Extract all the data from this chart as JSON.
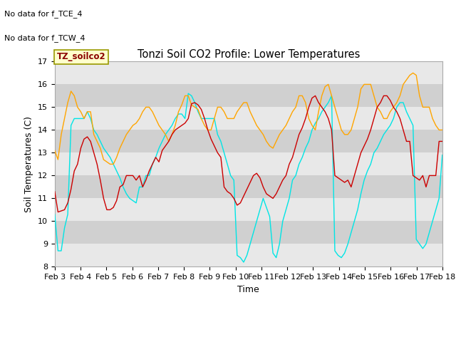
{
  "title": "Tonzi Soil CO2 Profile: Lower Temperatures",
  "xlabel": "Time",
  "ylabel": "Soil Temperatures (C)",
  "ylim": [
    8.0,
    17.0
  ],
  "yticks": [
    8.0,
    9.0,
    10.0,
    11.0,
    12.0,
    13.0,
    14.0,
    15.0,
    16.0,
    17.0
  ],
  "xtick_labels": [
    "Feb 3",
    "Feb 4",
    "Feb 5",
    "Feb 6",
    "Feb 7",
    "Feb 8",
    "Feb 9",
    "Feb 10",
    "Feb 11",
    "Feb 12",
    "Feb 13",
    "Feb 14",
    "Feb 15",
    "Feb 16",
    "Feb 17",
    "Feb 18"
  ],
  "no_data_text_1": "No data for f_TCE_4",
  "no_data_text_2": "No data for f_TCW_4",
  "legend_label_box": "TZ_soilco2",
  "plot_bg_light": "#e8e8e8",
  "plot_bg_dark": "#d0d0d0",
  "colors": {
    "open": "#cc0000",
    "tree": "#ffa500",
    "tree2": "#00e5e5"
  },
  "open_y": [
    11.3,
    10.4,
    10.45,
    10.5,
    10.8,
    11.4,
    12.2,
    12.5,
    13.2,
    13.6,
    13.7,
    13.5,
    13.0,
    12.5,
    11.8,
    11.0,
    10.5,
    10.5,
    10.6,
    10.9,
    11.5,
    11.6,
    12.0,
    12.0,
    12.0,
    11.8,
    12.0,
    11.5,
    11.8,
    12.2,
    12.5,
    12.8,
    12.6,
    13.1,
    13.3,
    13.5,
    13.8,
    14.0,
    14.1,
    14.2,
    14.3,
    14.5,
    15.15,
    15.2,
    15.1,
    14.9,
    14.5,
    14.0,
    13.6,
    13.3,
    13.0,
    12.8,
    11.5,
    11.3,
    11.2,
    11.0,
    10.7,
    10.8,
    11.1,
    11.4,
    11.7,
    12.0,
    12.1,
    11.9,
    11.5,
    11.2,
    11.1,
    11.0,
    11.2,
    11.5,
    11.8,
    12.0,
    12.5,
    12.8,
    13.3,
    13.8,
    14.1,
    14.5,
    15.0,
    15.4,
    15.5,
    15.2,
    15.0,
    14.8,
    14.5,
    14.0,
    12.0,
    11.9,
    11.8,
    11.7,
    11.8,
    11.5,
    12.0,
    12.5,
    13.0,
    13.3,
    13.6,
    14.0,
    14.5,
    15.0,
    15.2,
    15.5,
    15.5,
    15.3,
    15.0,
    14.8,
    14.5,
    14.0,
    13.5,
    13.5,
    12.0,
    11.9,
    11.8,
    12.0,
    11.5,
    12.0,
    12.0,
    12.0,
    13.5,
    13.5
  ],
  "tree_y": [
    13.1,
    12.7,
    13.8,
    14.5,
    15.2,
    15.7,
    15.5,
    15.0,
    14.8,
    14.5,
    14.8,
    14.8,
    13.8,
    13.5,
    13.2,
    12.7,
    12.6,
    12.5,
    12.5,
    12.8,
    13.2,
    13.5,
    13.8,
    14.0,
    14.2,
    14.3,
    14.5,
    14.8,
    15.0,
    15.0,
    14.8,
    14.5,
    14.2,
    14.0,
    13.8,
    13.5,
    13.8,
    14.2,
    14.8,
    15.1,
    15.5,
    15.5,
    15.1,
    15.0,
    14.9,
    14.5,
    14.2,
    14.0,
    14.0,
    14.5,
    15.0,
    15.0,
    14.8,
    14.5,
    14.5,
    14.5,
    14.8,
    15.0,
    15.2,
    15.2,
    14.8,
    14.5,
    14.2,
    14.0,
    13.8,
    13.5,
    13.3,
    13.2,
    13.5,
    13.8,
    14.0,
    14.2,
    14.5,
    14.8,
    15.0,
    15.5,
    15.5,
    15.2,
    14.5,
    14.2,
    14.0,
    14.8,
    15.5,
    15.9,
    16.0,
    15.5,
    15.0,
    14.5,
    14.0,
    13.8,
    13.8,
    14.0,
    14.5,
    15.0,
    15.8,
    16.0,
    16.0,
    16.0,
    15.5,
    15.0,
    14.8,
    14.5,
    14.5,
    14.8,
    15.0,
    15.2,
    15.5,
    16.0,
    16.2,
    16.4,
    16.5,
    16.4,
    15.5,
    15.0,
    15.0,
    15.0,
    14.5,
    14.2,
    14.0,
    14.0
  ],
  "tree2_y": [
    10.3,
    8.7,
    8.7,
    9.7,
    10.3,
    14.2,
    14.5,
    14.5,
    14.5,
    14.5,
    14.8,
    14.5,
    14.0,
    13.8,
    13.5,
    13.2,
    13.0,
    12.8,
    12.5,
    12.2,
    11.9,
    11.5,
    11.2,
    11.0,
    10.9,
    10.8,
    11.5,
    11.5,
    12.0,
    12.0,
    12.5,
    12.8,
    13.2,
    13.5,
    13.8,
    14.0,
    14.2,
    14.5,
    14.7,
    14.7,
    14.5,
    15.6,
    15.5,
    15.2,
    14.8,
    14.5,
    14.5,
    14.5,
    14.5,
    14.5,
    13.8,
    13.5,
    13.0,
    12.5,
    12.0,
    11.8,
    8.5,
    8.4,
    8.2,
    8.5,
    9.0,
    9.5,
    10.0,
    10.5,
    11.0,
    10.6,
    10.2,
    8.6,
    8.4,
    9.0,
    10.0,
    10.5,
    11.0,
    11.8,
    12.0,
    12.5,
    12.8,
    13.2,
    13.5,
    14.0,
    14.3,
    14.5,
    14.8,
    15.0,
    15.2,
    15.5,
    8.7,
    8.5,
    8.4,
    8.6,
    9.0,
    9.5,
    10.0,
    10.5,
    11.2,
    11.8,
    12.2,
    12.5,
    13.0,
    13.2,
    13.5,
    13.8,
    14.0,
    14.2,
    14.5,
    15.0,
    15.2,
    15.2,
    14.8,
    14.5,
    14.2,
    9.2,
    9.0,
    8.8,
    9.0,
    9.5,
    10.0,
    10.5,
    11.0,
    12.9
  ],
  "n_points": 120
}
